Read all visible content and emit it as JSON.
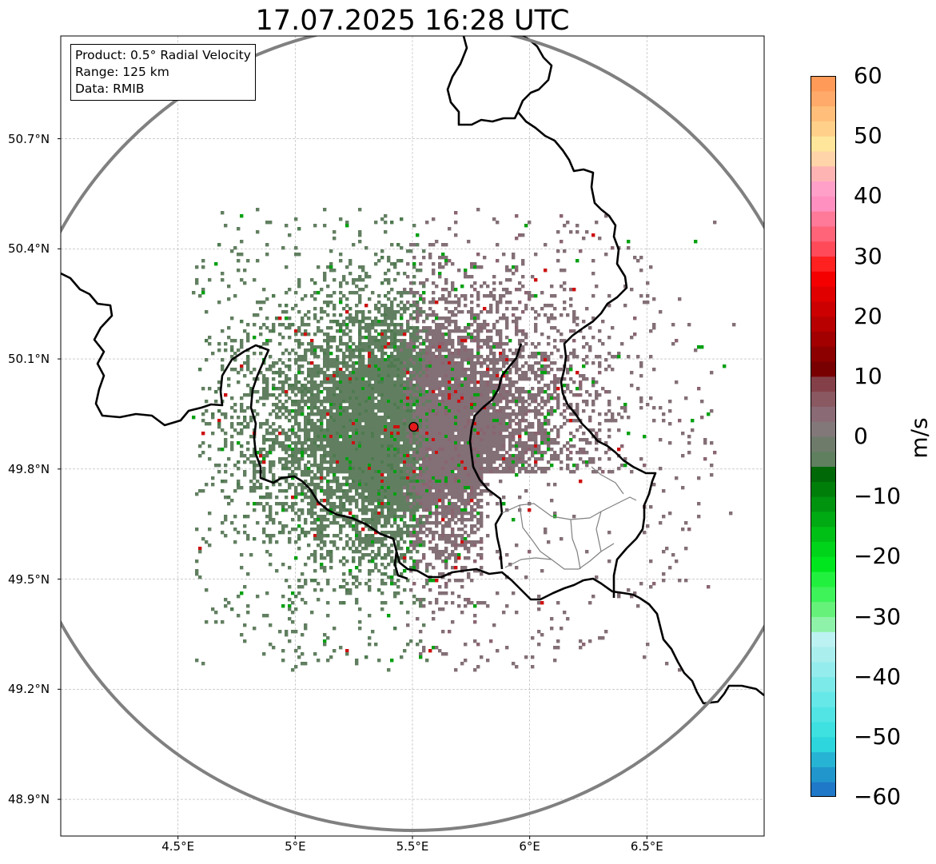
{
  "title": "17.07.2025 16:28 UTC",
  "info": {
    "product": "Product: 0.5° Radial Velocity",
    "range": "Range: 125 km",
    "data": "Data: RMIB"
  },
  "axes": {
    "lat_ticks": [
      {
        "label": "50.7°N",
        "value": 50.7
      },
      {
        "label": "50.4°N",
        "value": 50.4
      },
      {
        "label": "50.1°N",
        "value": 50.1
      },
      {
        "label": "49.8°N",
        "value": 49.8
      },
      {
        "label": "49.5°N",
        "value": 49.5
      },
      {
        "label": "49.2°N",
        "value": 49.2
      },
      {
        "label": "48.9°N",
        "value": 48.9
      }
    ],
    "lon_ticks": [
      {
        "label": "4.5°E",
        "value": 4.5
      },
      {
        "label": "5°E",
        "value": 5.0
      },
      {
        "label": "5.5°E",
        "value": 5.5
      },
      {
        "label": "6°E",
        "value": 6.0
      },
      {
        "label": "6.5°E",
        "value": 6.5
      }
    ],
    "lon_range": [
      4.0,
      7.0
    ],
    "lat_range": [
      48.8,
      50.98
    ],
    "grid": true
  },
  "radar": {
    "site_lon": 5.505,
    "site_lat": 49.915,
    "range_km": 125,
    "site_color": "#e41a1c"
  },
  "colorbar": {
    "unit": "m/s",
    "min": -60,
    "max": 60,
    "ticks": [
      {
        "label": "60",
        "value": 60
      },
      {
        "label": "50",
        "value": 50
      },
      {
        "label": "40",
        "value": 40
      },
      {
        "label": "30",
        "value": 30
      },
      {
        "label": "20",
        "value": 20
      },
      {
        "label": "10",
        "value": 10
      },
      {
        "label": "0",
        "value": 0
      },
      {
        "label": "−10",
        "value": -10
      },
      {
        "label": "−20",
        "value": -20
      },
      {
        "label": "−30",
        "value": -30
      },
      {
        "label": "−40",
        "value": -40
      },
      {
        "label": "−50",
        "value": -50
      },
      {
        "label": "−60",
        "value": -60
      }
    ],
    "colors": [
      "#1f78c8",
      "#2196cc",
      "#27b4d4",
      "#2dd6dc",
      "#3ee0e0",
      "#52e4e4",
      "#66e8e8",
      "#7deaea",
      "#95ecec",
      "#aaeeee",
      "#bcf2f2",
      "#8ef2a8",
      "#66f27a",
      "#3ef25a",
      "#22f03e",
      "#00e61e",
      "#00d41a",
      "#00c016",
      "#00aa12",
      "#00940e",
      "#007e0a",
      "#006806",
      "#5f7f5f",
      "#6e7b6b",
      "#82787a",
      "#8a6a74",
      "#8a5860",
      "#844048",
      "#780000",
      "#8c0000",
      "#a20000",
      "#b80000",
      "#cc0000",
      "#e00000",
      "#f40000",
      "#ff2020",
      "#ff4a5a",
      "#ff6478",
      "#ff7a98",
      "#ff90c0",
      "#ffa0c8",
      "#ffb4b4",
      "#ffd4a8",
      "#ffe69a",
      "#ffd08a",
      "#ffbe7a",
      "#ffaa6a",
      "#ff9a58"
    ]
  },
  "colors": {
    "velocity_zero_neg": "#617f60",
    "velocity_zero_pos": "#836f76",
    "velocity_strong_neg": "#00a010",
    "velocity_strong_pos": "#cc1010",
    "border_thick": "#000000",
    "border_thin": "#808080",
    "range_ring": "#808080"
  }
}
